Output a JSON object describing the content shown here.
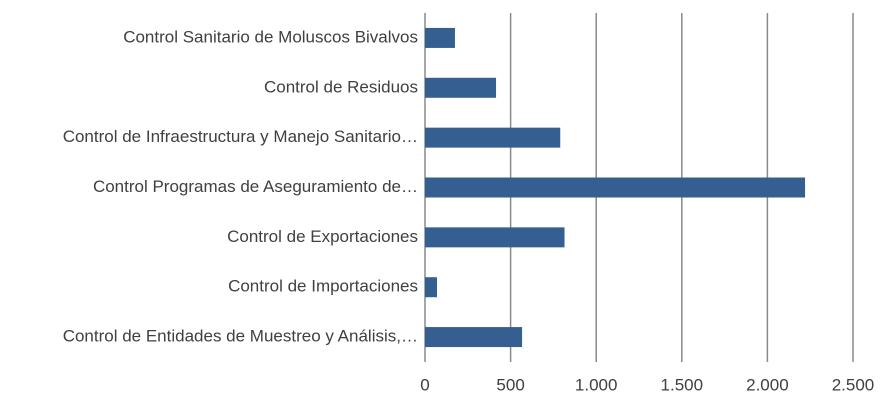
{
  "chart_data": {
    "type": "barh",
    "categories": [
      "Control Sanitario de Moluscos Bivalvos",
      "Control de Residuos",
      "Control de Infraestructura y Manejo Sanitario…",
      "Control Programas de Aseguramiento de…",
      "Control de Exportaciones",
      "Control de Importaciones",
      "Control de Entidades de Muestreo y Análisis,…"
    ],
    "values": [
      175,
      415,
      790,
      2220,
      815,
      70,
      567
    ],
    "color": "#355e91",
    "xlim": [
      0,
      2500
    ],
    "xticks": [
      0,
      500,
      {
        "value": 1000,
        "label": "1.000"
      },
      {
        "value": 1500,
        "label": "1.500"
      },
      {
        "value": 2000,
        "label": "2.000"
      },
      {
        "value": 2500,
        "label": "2.500"
      }
    ],
    "grid": true
  }
}
